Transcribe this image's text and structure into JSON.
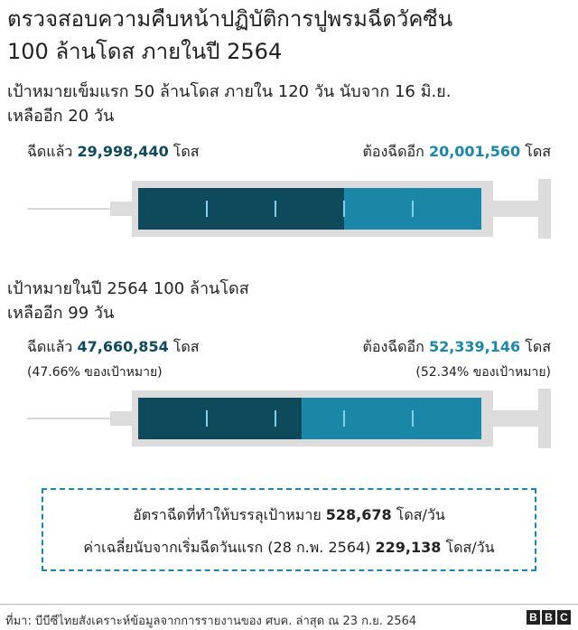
{
  "header": {
    "title_line1": "ตรวจสอบความคืบหน้าปฏิบัติการปูพรมฉีดวัคซีน",
    "title_line2": "100 ล้านโดส ภายในปี 2564"
  },
  "target1": {
    "subtitle_line1": "เป้าหมายเข็มแรก 50 ล้านโดส ภายใน 120 วัน นับจาก 16 มิ.ย.",
    "subtitle_line2": "เหลืออีก 20 วัน",
    "done_prefix": "ฉีดแล้ว",
    "done_value": "29,998,440",
    "done_unit": "โดส",
    "remaining_prefix": "ต้องฉีดอีก",
    "remaining_value": "20,001,560",
    "remaining_unit": "โดส"
  },
  "target2": {
    "subtitle_line1": "เป้าหมายในปี 2564 100 ล้านโดส",
    "subtitle_line2": "เหลืออีก 99 วัน",
    "done_prefix": "ฉีดแล้ว",
    "done_value": "47,660,854",
    "done_unit": "โดส",
    "done_pct": "(47.66% ของเป้าหมาย)",
    "remaining_prefix": "ต้องฉีดอีก",
    "remaining_value": "52,339,146",
    "remaining_unit": "โดส",
    "remaining_pct": "(52.34% ของเป้าหมาย)"
  },
  "rates": {
    "required_label": "อัตราฉีดที่ทำให้บรรลุเป้าหมาย",
    "required_value": "528,678",
    "required_unit": "โดส/วัน",
    "average_label": "ค่าเฉลี่ยนับจากเริ่มฉีดวันแรก (28 ก.พ. 2564)",
    "average_value": "229,138",
    "average_unit": "โดส/วัน"
  },
  "footer": {
    "source": "ที่มา: บีบีซีไทยสังเคราะห์ข้อมูลจากการรายงานของ ศบค. ล่าสุด ณ 23 ก.ย. 2564",
    "brand_letters": [
      "B",
      "B",
      "C"
    ]
  },
  "colors": {
    "done": "#0e4a5c",
    "remaining": "#1a86a8",
    "syringe_body": "#dcdcdc",
    "tick": "#7fd0e8",
    "box_border": "#1a8aaa"
  },
  "chart_data": [
    {
      "type": "bar",
      "orientation": "horizontal-stacked",
      "title": "เป้าหมายเข็มแรก 50 ล้านโดส ภายใน 120 วัน นับจาก 16 มิ.ย.",
      "total": 50000000,
      "series": [
        {
          "name": "ฉีดแล้ว",
          "values": [
            29998440
          ]
        },
        {
          "name": "ต้องฉีดอีก",
          "values": [
            20001560
          ]
        }
      ]
    },
    {
      "type": "bar",
      "orientation": "horizontal-stacked",
      "title": "เป้าหมายในปี 2564 100 ล้านโดส",
      "total": 100000000,
      "series": [
        {
          "name": "ฉีดแล้ว",
          "values": [
            47660854
          ]
        },
        {
          "name": "ต้องฉีดอีก",
          "values": [
            52339146
          ]
        }
      ]
    }
  ]
}
